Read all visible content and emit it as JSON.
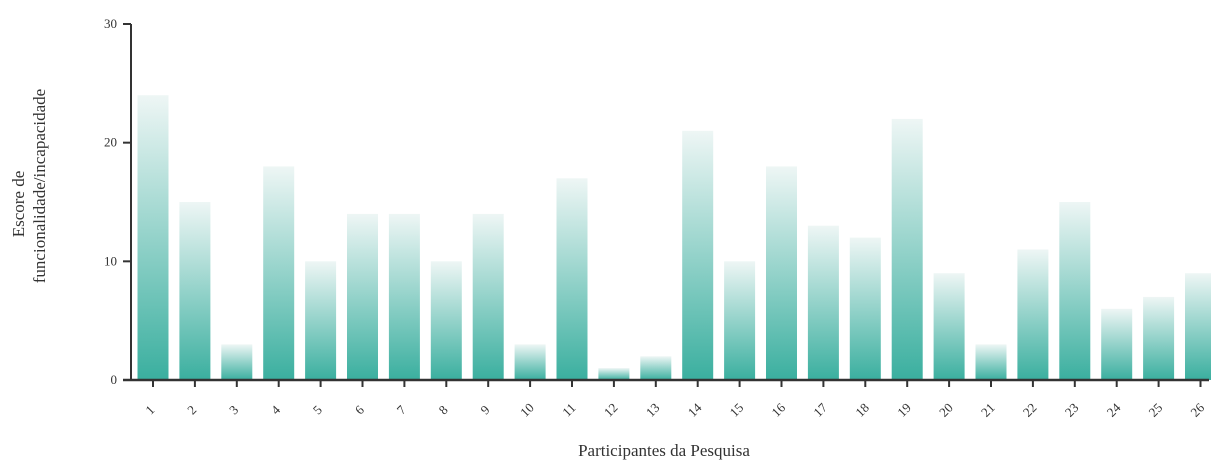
{
  "chart_data": {
    "type": "bar",
    "xlabel": "Participantes da Pesquisa",
    "ylabel_lines": [
      "Escore de",
      "funcionalidade/incapacidade"
    ],
    "ylim": [
      0,
      30
    ],
    "yticks": [
      "0",
      "10",
      "20",
      "30"
    ],
    "categories": [
      "1",
      "2",
      "3",
      "4",
      "5",
      "6",
      "7",
      "8",
      "9",
      "10",
      "11",
      "12",
      "13",
      "14",
      "15",
      "16",
      "17",
      "18",
      "19",
      "20",
      "21",
      "22",
      "23",
      "24",
      "25",
      "26"
    ],
    "values": [
      24,
      15,
      3,
      18,
      10,
      14,
      14,
      10,
      14,
      3,
      17,
      1,
      2,
      21,
      10,
      18,
      13,
      12,
      22,
      9,
      3,
      11,
      15,
      6,
      7,
      9
    ],
    "grid": false,
    "legend": "none",
    "colors": {
      "bar_bottom": "#3aaf9f",
      "bar_top": "#eef6f5",
      "axis": "#333333"
    }
  }
}
